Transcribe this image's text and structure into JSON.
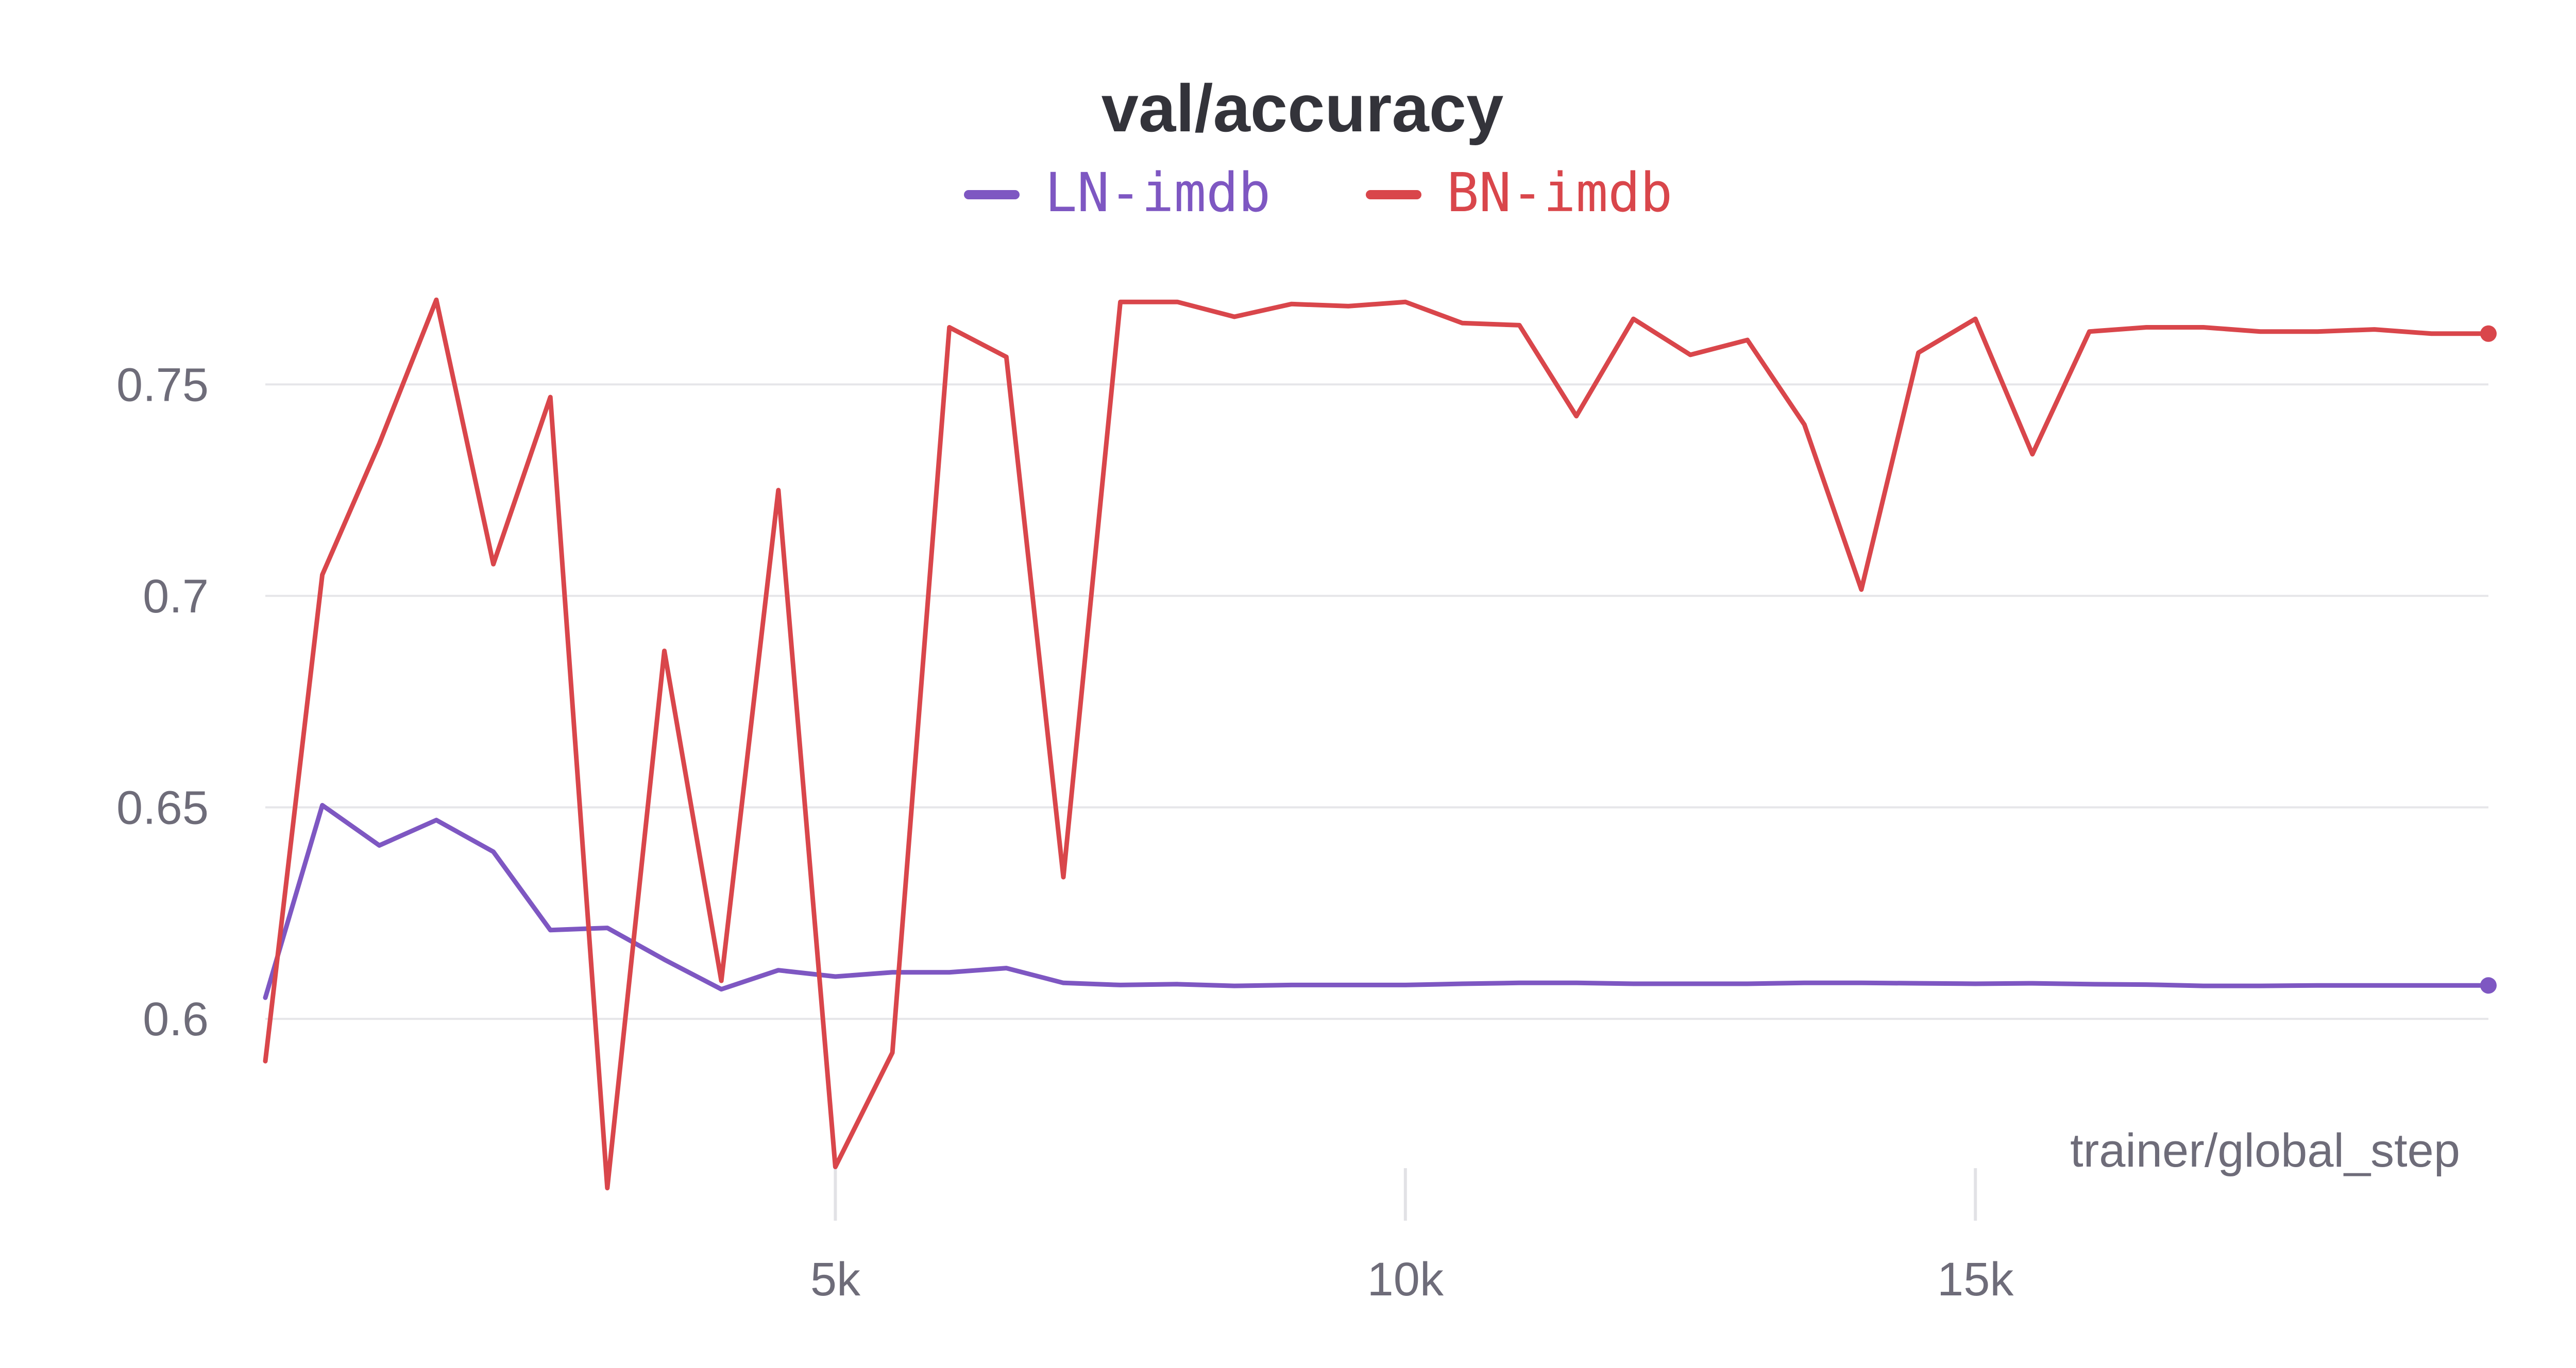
{
  "chart_data": {
    "type": "line",
    "title": "val/accuracy",
    "xlabel": "trainer/global_step",
    "ylabel": "",
    "xlim": [
      0,
      19500
    ],
    "ylim": [
      0.558,
      0.78
    ],
    "x_ticks": [
      5000,
      10000,
      15000
    ],
    "x_tick_labels": [
      "5k",
      "10k",
      "15k"
    ],
    "y_ticks": [
      0.6,
      0.65,
      0.7,
      0.75
    ],
    "y_tick_labels": [
      "0.6",
      "0.65",
      "0.7",
      "0.75"
    ],
    "grid": true,
    "legend_position": "top-center",
    "series": [
      {
        "name": "LN-imdb",
        "color": "#7e57c2",
        "x": [
          0,
          500,
          1000,
          1500,
          2000,
          2500,
          3000,
          3500,
          4000,
          4500,
          5000,
          5500,
          6000,
          6500,
          7000,
          7500,
          8000,
          8500,
          9000,
          9500,
          10000,
          10500,
          11000,
          11500,
          12000,
          12500,
          13000,
          13500,
          14000,
          14500,
          15000,
          15500,
          16000,
          16500,
          17000,
          17500,
          18000,
          18500,
          19000,
          19500
        ],
        "y": [
          0.605,
          0.6505,
          0.641,
          0.647,
          0.6395,
          0.621,
          0.6215,
          0.614,
          0.607,
          0.6115,
          0.61,
          0.611,
          0.611,
          0.612,
          0.6085,
          0.608,
          0.6082,
          0.6078,
          0.608,
          0.608,
          0.608,
          0.6083,
          0.6085,
          0.6085,
          0.6083,
          0.6083,
          0.6083,
          0.6085,
          0.6085,
          0.6084,
          0.6083,
          0.6084,
          0.6082,
          0.6081,
          0.6078,
          0.6078,
          0.6079,
          0.6079,
          0.6079,
          0.6079
        ]
      },
      {
        "name": "BN-imdb",
        "color": "#d9464b",
        "x": [
          0,
          500,
          1000,
          1500,
          2000,
          2500,
          3000,
          3500,
          4000,
          4500,
          5000,
          5500,
          6000,
          6500,
          7000,
          7500,
          8000,
          8500,
          9000,
          9500,
          10000,
          10500,
          11000,
          11500,
          12000,
          12500,
          13000,
          13500,
          14000,
          14500,
          15000,
          15500,
          16000,
          16500,
          17000,
          17500,
          18000,
          18500,
          19000,
          19500
        ],
        "y": [
          0.59,
          0.705,
          0.736,
          0.77,
          0.7075,
          0.747,
          0.56,
          0.687,
          0.609,
          0.725,
          0.565,
          0.592,
          0.7635,
          0.7565,
          0.6335,
          0.7695,
          0.7695,
          0.766,
          0.769,
          0.7685,
          0.7695,
          0.7645,
          0.764,
          0.7425,
          0.7655,
          0.757,
          0.7605,
          0.7405,
          0.7015,
          0.7575,
          0.7655,
          0.7335,
          0.7625,
          0.7635,
          0.7635,
          0.7625,
          0.7625,
          0.763,
          0.762,
          0.762
        ]
      }
    ]
  }
}
